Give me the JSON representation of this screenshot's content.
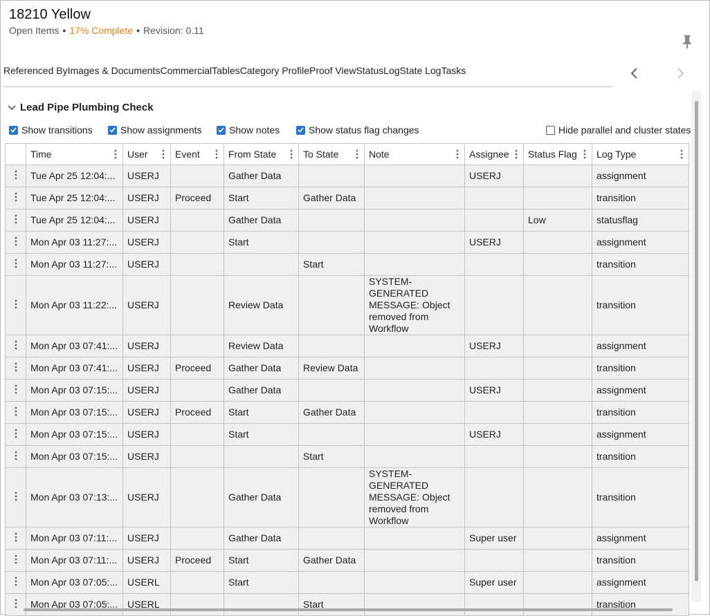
{
  "header": {
    "title": "18210 Yellow",
    "subtitle": [
      "Open Items",
      "17% Complete",
      "Revision: 0.11"
    ]
  },
  "tabs": [
    {
      "label": "Referenced By"
    },
    {
      "label": "Images & Documents"
    },
    {
      "label": "Commercial"
    },
    {
      "label": "Tables"
    },
    {
      "label": "Category Profile"
    },
    {
      "label": "Proof View"
    },
    {
      "label": "Status"
    },
    {
      "label": "Log"
    },
    {
      "label": "State Log",
      "selected": true
    },
    {
      "label": "Tasks"
    }
  ],
  "section": {
    "title": "Lead Pipe Plumbing Check"
  },
  "options": [
    {
      "label": "Show transitions",
      "checked": true
    },
    {
      "label": "Show assignments",
      "checked": true
    },
    {
      "label": "Show notes",
      "checked": true
    },
    {
      "label": "Show status flag changes",
      "checked": true
    },
    {
      "label": "Hide parallel and cluster states",
      "checked": false
    }
  ],
  "table": {
    "columns": [
      "Time",
      "User",
      "Event",
      "From State",
      "To State",
      "Note",
      "Assignee",
      "Status Flag",
      "Log Type"
    ],
    "rows": [
      [
        "Tue Apr 25 12:04:...",
        "USERJ",
        null,
        "Gather Data",
        null,
        null,
        "USERJ",
        null,
        "assignment"
      ],
      [
        "Tue Apr 25 12:04:...",
        "USERJ",
        "Proceed",
        "Start",
        "Gather Data",
        null,
        null,
        null,
        "transition"
      ],
      [
        "Tue Apr 25 12:04:...",
        "USERJ",
        null,
        "Gather Data",
        null,
        null,
        null,
        "Low",
        "statusflag"
      ],
      [
        "Mon Apr 03 11:27:...",
        "USERJ",
        null,
        "Start",
        null,
        null,
        "USERJ",
        null,
        "assignment"
      ],
      [
        "Mon Apr 03 11:27:...",
        "USERJ",
        null,
        null,
        "Start",
        null,
        null,
        null,
        "transition"
      ],
      [
        "Mon Apr 03 11:22:...",
        "USERJ",
        null,
        "Review Data",
        null,
        "SYSTEM-GENERATED MESSAGE: Object removed from Workflow",
        null,
        null,
        "transition"
      ],
      [
        "Mon Apr 03 07:41:...",
        "USERJ",
        null,
        "Review Data",
        null,
        null,
        "USERJ",
        null,
        "assignment"
      ],
      [
        "Mon Apr 03 07:41:...",
        "USERJ",
        "Proceed",
        "Gather Data",
        "Review Data",
        null,
        null,
        null,
        "transition"
      ],
      [
        "Mon Apr 03 07:15:...",
        "USERJ",
        null,
        "Gather Data",
        null,
        null,
        "USERJ",
        null,
        "assignment"
      ],
      [
        "Mon Apr 03 07:15:...",
        "USERJ",
        "Proceed",
        "Start",
        "Gather Data",
        null,
        null,
        null,
        "transition"
      ],
      [
        "Mon Apr 03 07:15:...",
        "USERJ",
        null,
        "Start",
        null,
        null,
        "USERJ",
        null,
        "assignment"
      ],
      [
        "Mon Apr 03 07:15:...",
        "USERJ",
        null,
        null,
        "Start",
        null,
        null,
        null,
        "transition"
      ],
      [
        "Mon Apr 03 07:13:...",
        "USERJ",
        null,
        "Gather Data",
        null,
        "SYSTEM-GENERATED MESSAGE: Object removed from Workflow",
        null,
        null,
        "transition"
      ],
      [
        "Mon Apr 03 07:11:...",
        "USERJ",
        null,
        "Gather Data",
        null,
        null,
        "Super user",
        null,
        "assignment"
      ],
      [
        "Mon Apr 03 07:11:...",
        "USERJ",
        "Proceed",
        "Start",
        "Gather Data",
        null,
        null,
        null,
        "transition"
      ],
      [
        "Mon Apr 03 07:05:...",
        "USERL",
        null,
        "Start",
        null,
        null,
        "Super user",
        null,
        "assignment"
      ],
      [
        "Mon Apr 03 07:05:...",
        "USERL",
        null,
        null,
        "Start",
        null,
        null,
        null,
        "transition"
      ]
    ]
  }
}
